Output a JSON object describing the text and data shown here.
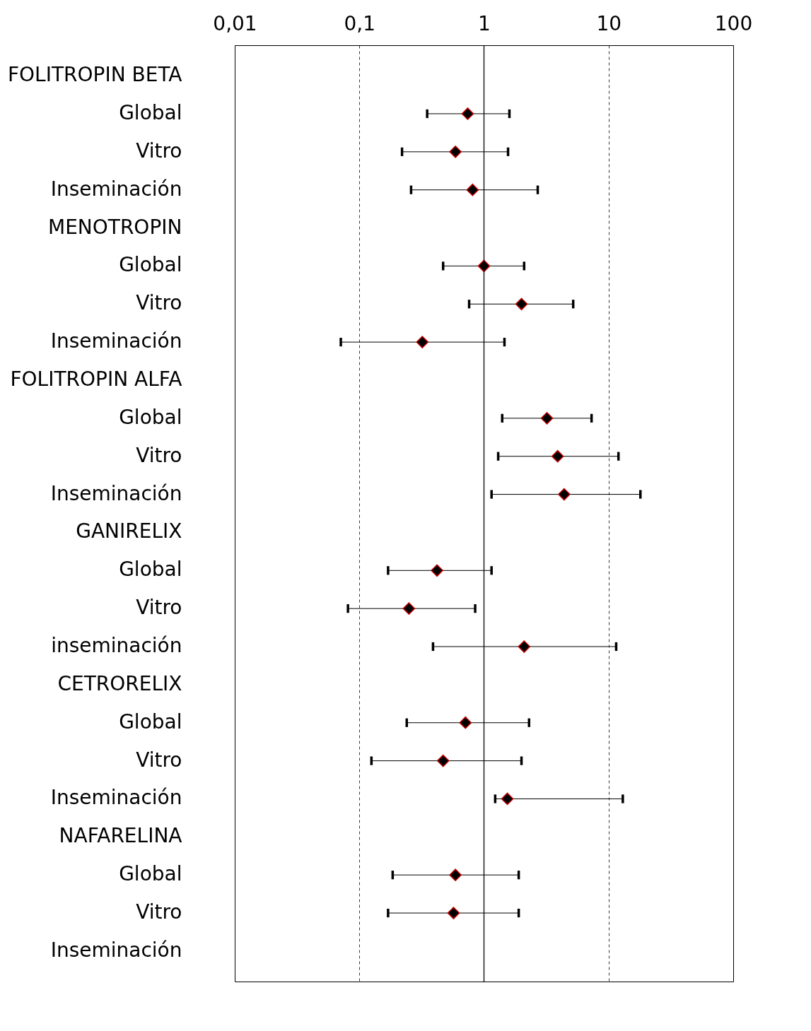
{
  "chart_data": {
    "type": "scatter",
    "orientation": "horizontal",
    "log": "x",
    "grid": "x",
    "marker": "diamond",
    "categories": [
      "FOLITROPIN BETA",
      "Global",
      "Vitro",
      "Inseminación",
      "MENOTROPIN",
      "Global",
      "Vitro",
      "Inseminación",
      "FOLITROPIN ALFA",
      "Global",
      "Vitro",
      "Inseminación",
      "GANIRELIX",
      "Global",
      "Vitro",
      "inseminación",
      "CETRORELIX",
      "Global",
      "Vitro",
      "Inseminación",
      "NAFARELINA",
      "Global",
      "Vitro",
      "Inseminación"
    ],
    "series": [
      {
        "color": "#000000",
        "values": [
          null,
          0.74,
          0.59,
          0.81,
          null,
          1.0,
          2.0,
          0.32,
          null,
          3.2,
          3.9,
          4.4,
          null,
          0.42,
          0.25,
          2.1,
          null,
          0.71,
          0.47,
          1.54,
          null,
          0.59,
          0.57,
          null
        ],
        "errors": [
          null,
          [
            0.35,
            1.6
          ],
          [
            0.22,
            1.56
          ],
          [
            0.26,
            2.7
          ],
          null,
          [
            0.47,
            2.1
          ],
          [
            0.76,
            5.2
          ],
          [
            0.071,
            1.46
          ],
          null,
          [
            1.4,
            7.3
          ],
          [
            1.3,
            12
          ],
          [
            1.15,
            18
          ],
          null,
          [
            0.17,
            1.15
          ],
          [
            0.081,
            0.85
          ],
          [
            0.39,
            11.5
          ],
          null,
          [
            0.24,
            2.3
          ],
          [
            0.125,
            2.0
          ],
          [
            1.23,
            13
          ],
          null,
          [
            0.185,
            1.9
          ],
          [
            0.17,
            1.9
          ],
          null
        ]
      }
    ],
    "xlim": [
      0.01,
      100
    ],
    "xticks": [
      {
        "value": 0.01,
        "label": "0,01"
      },
      {
        "value": 0.1,
        "label": "0,1"
      },
      1,
      10,
      100
    ],
    "ref_lines": [
      {
        "axis": "x",
        "value": 1,
        "color": "#000000"
      }
    ]
  }
}
